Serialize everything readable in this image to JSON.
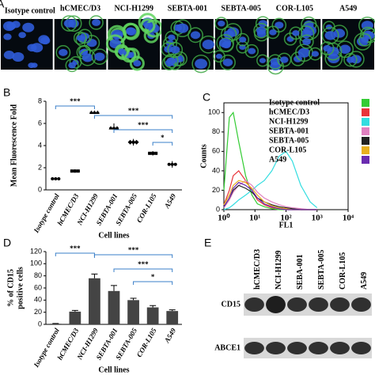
{
  "panel_a": {
    "label": "A",
    "images": [
      "Isotype control",
      "hCMEC/D3",
      "NCI-H1299",
      "SEBTA-001",
      "SEBTA-005",
      "COR-L105",
      "A549"
    ]
  },
  "chart_data": [
    {
      "type": "dot",
      "panel": "B",
      "y_label": "Mean Fluorescence Fold",
      "x_label": "Cell lines",
      "categories": [
        "Isotype control",
        "hCMEC/D3",
        "NCI-H1299",
        "SEBTA-001",
        "SEBTA-005",
        "COR-L105",
        "A549"
      ],
      "values": [
        1,
        1.7,
        7.0,
        5.6,
        4.3,
        3.3,
        2.3
      ],
      "errors": [
        0.05,
        0.15,
        0.15,
        0.4,
        0.3,
        0.2,
        0.3
      ],
      "color": "#000000",
      "ylim": [
        0,
        8
      ],
      "yticks": [
        0,
        2,
        4,
        6,
        8
      ],
      "annotations": [
        "***",
        "***",
        "***",
        "*"
      ]
    },
    {
      "type": "line",
      "panel": "C",
      "y_label": "Counts",
      "x_label": "FL1",
      "log_x": true,
      "x": [
        1,
        1.5,
        2,
        3,
        5,
        8,
        12,
        20,
        35,
        60,
        100,
        160,
        300,
        600,
        1000
      ],
      "xlim": [
        1,
        10000
      ],
      "xticks": [
        {
          "value": 1,
          "label": "10⁰"
        },
        {
          "value": 10,
          "label": "10¹"
        },
        {
          "value": 100,
          "label": "10²"
        },
        {
          "value": 1000,
          "label": "10³"
        },
        {
          "value": 10000,
          "label": "10⁴"
        }
      ],
      "ylim": [
        0,
        110
      ],
      "yticks": [
        0,
        20,
        40,
        60,
        80,
        100
      ],
      "series": [
        {
          "name": "Isotype control",
          "color": "#33cc33",
          "values": [
            20,
            95,
            100,
            70,
            35,
            15,
            6,
            3,
            1,
            0,
            0,
            0,
            0,
            0,
            0
          ]
        },
        {
          "name": "hCMEC/D3",
          "color": "#e8343a",
          "values": [
            5,
            20,
            35,
            40,
            30,
            20,
            10,
            5,
            2,
            1,
            0,
            0,
            0,
            0,
            0
          ]
        },
        {
          "name": "NCI-H1299",
          "color": "#33dde0",
          "values": [
            0,
            2,
            5,
            10,
            15,
            20,
            25,
            30,
            40,
            55,
            60,
            50,
            25,
            8,
            2
          ]
        },
        {
          "name": "SEBTA-001",
          "color": "#e080c0",
          "values": [
            2,
            10,
            18,
            25,
            30,
            25,
            18,
            12,
            8,
            5,
            3,
            2,
            1,
            0,
            0
          ]
        },
        {
          "name": "SEBTA-005",
          "color": "#222222",
          "values": [
            3,
            12,
            20,
            25,
            22,
            18,
            12,
            8,
            5,
            3,
            2,
            1,
            0,
            0,
            0
          ]
        },
        {
          "name": "COR-L105",
          "color": "#e8b020",
          "values": [
            5,
            15,
            25,
            30,
            28,
            22,
            15,
            8,
            4,
            2,
            1,
            0,
            0,
            0,
            0
          ]
        },
        {
          "name": "A549",
          "color": "#6a2cb0",
          "values": [
            3,
            12,
            22,
            28,
            25,
            20,
            12,
            6,
            3,
            1,
            0,
            0,
            0,
            0,
            0
          ]
        }
      ]
    },
    {
      "type": "bar",
      "panel": "D",
      "y_label": [
        "% of CD15",
        "positive cells"
      ],
      "x_label": "Cell lines",
      "categories": [
        "Isotype control",
        "hCMEC/D3",
        "NCI-H1299",
        "SEBTA-001",
        "SEBTA-005",
        "COR-L105",
        "A549"
      ],
      "values": [
        1,
        21,
        76,
        55,
        40,
        28,
        22
      ],
      "errors": [
        0.5,
        2,
        7,
        9,
        3,
        3,
        2
      ],
      "color": "#444444",
      "ylim": [
        0,
        120
      ],
      "yticks": [
        0,
        20,
        40,
        60,
        80,
        100,
        120
      ],
      "annotations": [
        "***",
        "***",
        "***",
        "*"
      ]
    }
  ],
  "panel_e": {
    "label": "E",
    "lanes": [
      "hCMEC/D3",
      "NCI-H1299",
      "SEBA-001",
      "SEBTA-005",
      "COR-L105",
      "A549"
    ],
    "rows": [
      "CD15",
      "ABCE1"
    ]
  }
}
